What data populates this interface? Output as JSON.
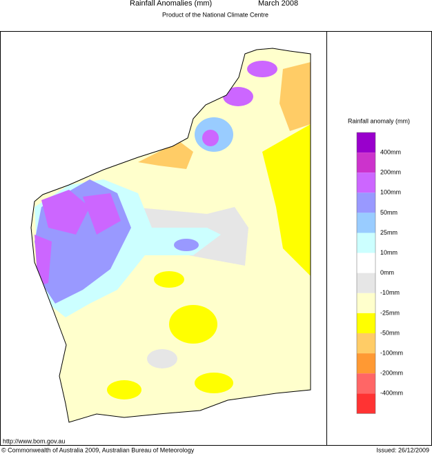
{
  "header": {
    "title": "Rainfall Anomalies (mm)",
    "date": "March 2008",
    "subtitle": "Product of the National Climate Centre"
  },
  "legend": {
    "title": "Rainfall anomaly (mm)",
    "labels": [
      "400mm",
      "200mm",
      "100mm",
      "50mm",
      "25mm",
      "10mm",
      "0mm",
      "-10mm",
      "-25mm",
      "-50mm",
      "-100mm",
      "-200mm",
      "-400mm"
    ],
    "colors": [
      "#9900cc",
      "#cc33cc",
      "#cc66ff",
      "#9999ff",
      "#99ccff",
      "#ccffff",
      "#ffffff",
      "#e6e6e6",
      "#ffffcc",
      "#ffff00",
      "#ffcc66",
      "#ff9933",
      "#ff6666",
      "#ff3333"
    ]
  },
  "footer": {
    "url": "http://www.bom.gov.au",
    "copyright": "© Commonwealth of Australia 2009, Australian Bureau of Meteorology",
    "issued": "Issued: 26/12/2009"
  }
}
